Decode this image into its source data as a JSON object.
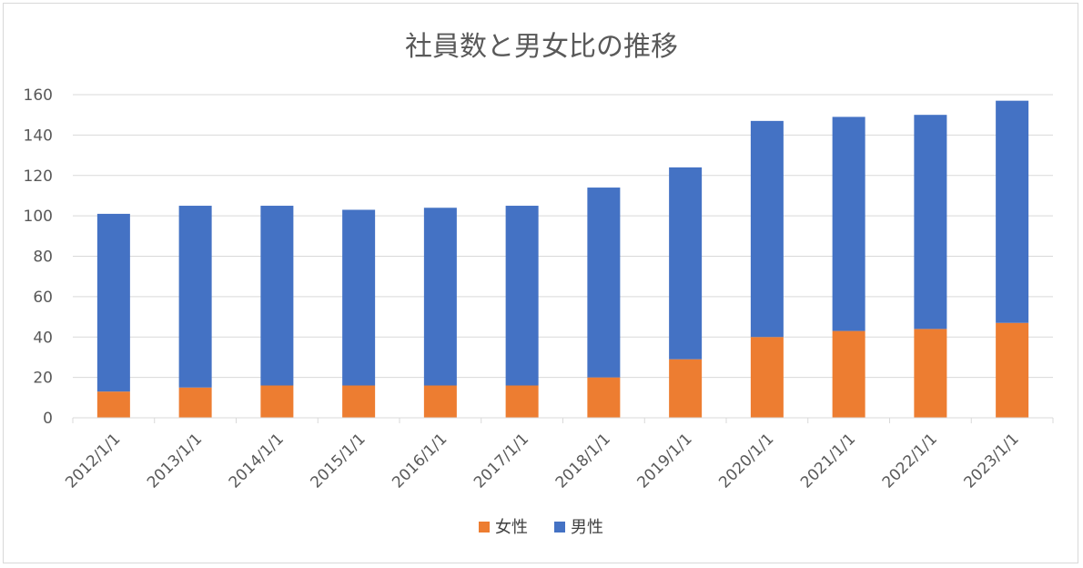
{
  "chart_data": {
    "type": "bar",
    "stacked": true,
    "title": "社員数と男女比の推移",
    "xlabel": "",
    "ylabel": "",
    "categories": [
      "2012/1/1",
      "2013/1/1",
      "2014/1/1",
      "2015/1/1",
      "2016/1/1",
      "2017/1/1",
      "2018/1/1",
      "2019/1/1",
      "2020/1/1",
      "2021/1/1",
      "2022/1/1",
      "2023/1/1"
    ],
    "series": [
      {
        "name": "女性",
        "color": "#ed7d31",
        "values": [
          13,
          15,
          16,
          16,
          16,
          16,
          20,
          29,
          40,
          43,
          44,
          47
        ]
      },
      {
        "name": "男性",
        "color": "#4472c4",
        "values": [
          88,
          90,
          89,
          87,
          88,
          89,
          94,
          95,
          107,
          106,
          106,
          110
        ]
      }
    ],
    "ylim": [
      0,
      160
    ],
    "yticks": [
      0,
      20,
      40,
      60,
      80,
      100,
      120,
      140,
      160
    ],
    "grid": true,
    "legend": "bottom"
  }
}
